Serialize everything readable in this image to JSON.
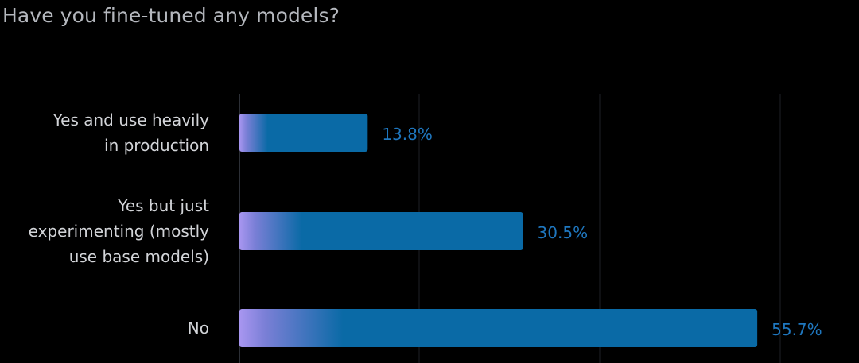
{
  "chart_data": {
    "type": "bar",
    "orientation": "horizontal",
    "title": "Have you fine-tuned any models?",
    "categories": [
      [
        "Yes and use heavily",
        "in production"
      ],
      [
        "Yes but just",
        "experimenting (mostly",
        "use base models)"
      ],
      [
        "No"
      ]
    ],
    "values": [
      13.8,
      30.5,
      55.7
    ],
    "value_labels": [
      "13.8%",
      "30.5%",
      "55.7%"
    ],
    "xlim": [
      0,
      60
    ],
    "unit": "%",
    "grid": true,
    "legend": "none"
  },
  "colors": {
    "background": "#000000",
    "bar": "#0a6aa6",
    "bar_gradient_start": "#a896f0",
    "value_label": "#1f77bf",
    "category_label": "#d2d4d8",
    "title": "#b4b7bd",
    "axis": "#2c2f36",
    "grid": "#191b20"
  }
}
